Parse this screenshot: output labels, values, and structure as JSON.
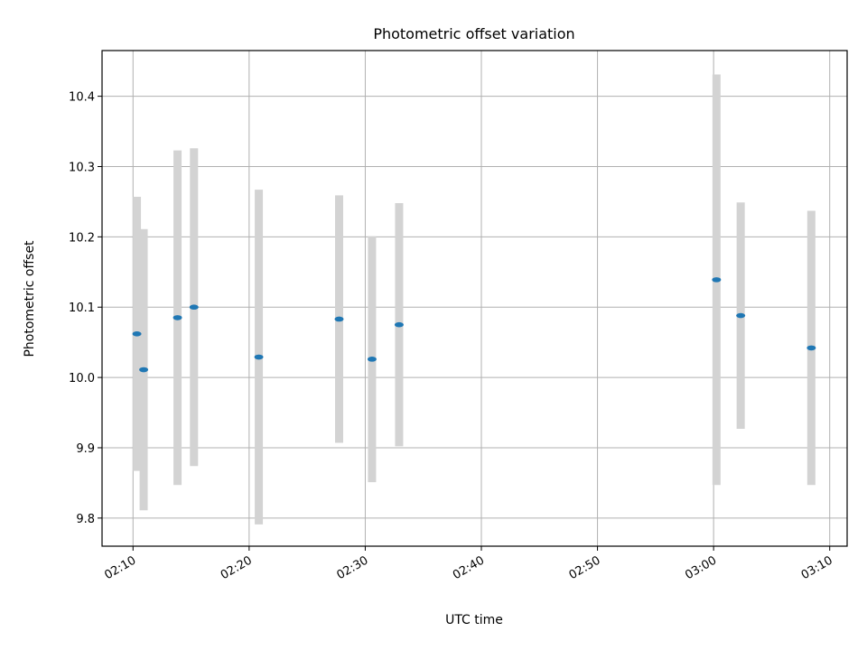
{
  "chart_data": {
    "type": "scatter",
    "title": "Photometric offset variation",
    "xlabel": "UTC time",
    "ylabel": "Photometric offset",
    "x_ticks": [
      "02:10",
      "02:20",
      "02:30",
      "02:40",
      "02:50",
      "03:00",
      "03:10"
    ],
    "y_ticks": [
      "9.8",
      "9.9",
      "10.0",
      "10.1",
      "10.2",
      "10.3",
      "10.4"
    ],
    "xlim": [
      "02:07:20",
      "03:11:30"
    ],
    "ylim": [
      9.76,
      10.465
    ],
    "grid": true,
    "errorbar_color": "#d3d3d3",
    "point_color": "#1f77b4",
    "points": [
      {
        "x": "02:10:20",
        "y": 10.062,
        "yerr": 0.195
      },
      {
        "x": "02:10:55",
        "y": 10.011,
        "yerr": 0.2
      },
      {
        "x": "02:13:50",
        "y": 10.085,
        "yerr": 0.238
      },
      {
        "x": "02:15:15",
        "y": 10.1,
        "yerr": 0.226
      },
      {
        "x": "02:20:50",
        "y": 10.029,
        "yerr": 0.238
      },
      {
        "x": "02:27:45",
        "y": 10.083,
        "yerr": 0.176
      },
      {
        "x": "02:30:35",
        "y": 10.026,
        "yerr": 0.175
      },
      {
        "x": "02:32:55",
        "y": 10.075,
        "yerr": 0.173
      },
      {
        "x": "03:00:15",
        "y": 10.139,
        "yerr": 0.292
      },
      {
        "x": "03:02:20",
        "y": 10.088,
        "yerr": 0.161
      },
      {
        "x": "03:08:25",
        "y": 10.042,
        "yerr": 0.195
      }
    ]
  }
}
